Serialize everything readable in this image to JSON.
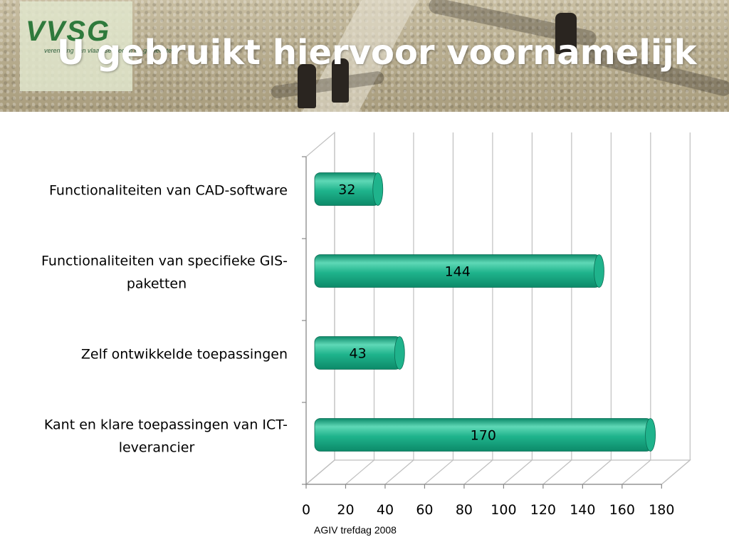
{
  "header": {
    "logo_text": "VVSG",
    "logo_sub": "vereniging van vlaamse steden en gemeenten",
    "title": "U gebruikt hiervoor voornamelijk"
  },
  "footer": {
    "text": "AGIV trefdag 2008"
  },
  "colors": {
    "bar": "#1fb38c",
    "bar_light": "#5fd8b6",
    "bar_dark": "#0c8a69",
    "grid": "#bfbfbf"
  },
  "chart_data": {
    "type": "bar",
    "orientation": "horizontal",
    "style": "3d-cylinder",
    "categories": [
      [
        "Functionaliteiten van CAD-software"
      ],
      [
        "Functionaliteiten van specifieke GIS-",
        "paketten"
      ],
      [
        "Zelf ontwikkelde toepassingen"
      ],
      [
        "Kant en klare toepassingen van ICT-",
        "leverancier"
      ]
    ],
    "values": [
      32,
      144,
      43,
      170
    ],
    "xlim": [
      0,
      180
    ],
    "ticks": [
      0,
      20,
      40,
      60,
      80,
      100,
      120,
      140,
      160,
      180
    ],
    "grid": true,
    "legend": "none"
  }
}
